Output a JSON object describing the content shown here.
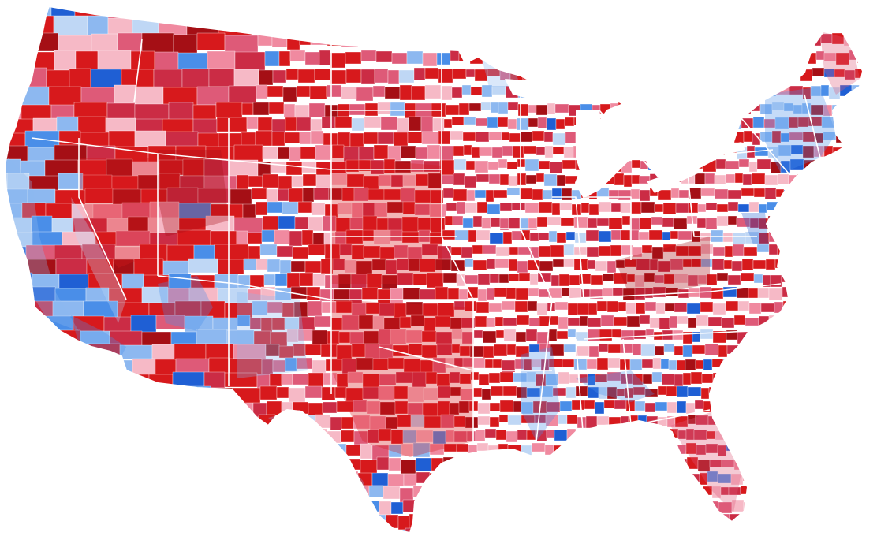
{
  "map": {
    "palette": {
      "dark_red": "#a50f15",
      "red": "#d7191c",
      "medium_red": "#cb2c45",
      "pink_red": "#de5a78",
      "light_pink": "#f08aa0",
      "pale_pink": "#f6b9c6",
      "pale_blue": "#bfd7f5",
      "light_blue": "#8db8f0",
      "blue": "#4a8ee8",
      "dark_blue": "#1f5fd4",
      "border": "#ffffff",
      "background": "#ffffff"
    },
    "shading_legend_shown": false,
    "state_borders": true,
    "county_borders": true
  }
}
